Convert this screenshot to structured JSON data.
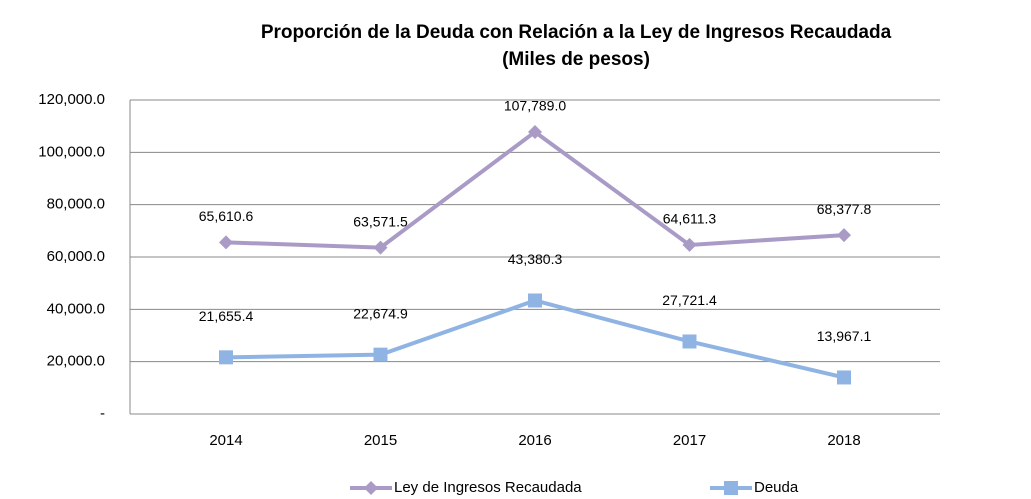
{
  "chart_data": {
    "type": "line",
    "title": "Proporción de la Deuda con Relación a la Ley de  Ingresos Recaudada",
    "subtitle": "(Miles de pesos)",
    "categories": [
      "2014",
      "2015",
      "2016",
      "2017",
      "2018"
    ],
    "series": [
      {
        "name": "Ley de Ingresos Recaudada",
        "color": "#a99bc6",
        "marker": "diamond",
        "values": [
          65610.6,
          63571.5,
          107789.0,
          64611.3,
          68377.8
        ],
        "value_labels": [
          "65,610.6",
          "63,571.5",
          "107,789.0",
          "64,611.3",
          "68,377.8"
        ]
      },
      {
        "name": "Deuda",
        "color": "#8fb4e3",
        "marker": "square",
        "values": [
          21655.4,
          22674.9,
          43380.3,
          27721.4,
          13967.1
        ],
        "value_labels": [
          "21,655.4",
          "22,674.9",
          "43,380.3",
          "27,721.4",
          "13,967.1"
        ]
      }
    ],
    "ylim": [
      0,
      120000
    ],
    "yticks": [
      {
        "value": 0,
        "label": "-"
      },
      {
        "value": 20000,
        "label": "20,000.0"
      },
      {
        "value": 40000,
        "label": "40,000.0"
      },
      {
        "value": 60000,
        "label": "60,000.0"
      },
      {
        "value": 80000,
        "label": "80,000.0"
      },
      {
        "value": 100000,
        "label": "100,000.0"
      },
      {
        "value": 120000,
        "label": "120,000.0"
      }
    ],
    "grid": true,
    "legend": "bottom"
  }
}
